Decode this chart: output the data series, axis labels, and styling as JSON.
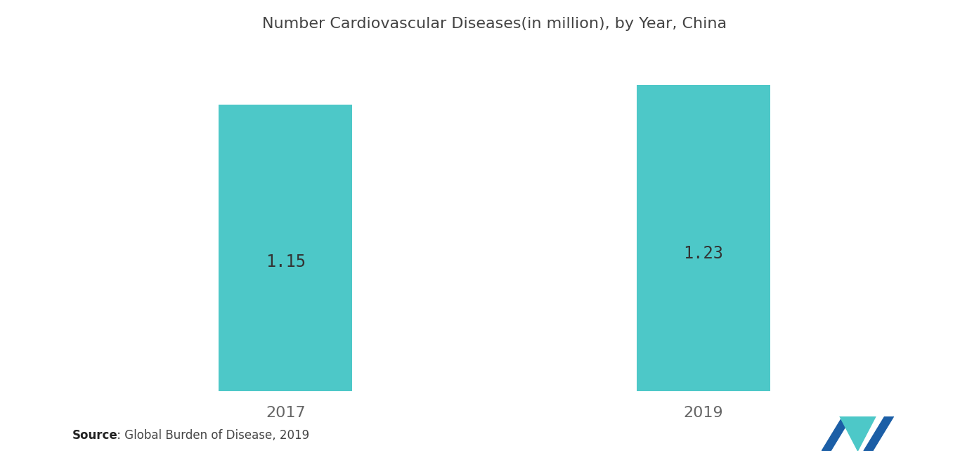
{
  "title": "Number Cardiovascular Diseases(in million), by Year, China",
  "categories": [
    "2017",
    "2019"
  ],
  "values": [
    1.15,
    1.23
  ],
  "bar_color": "#4DC8C8",
  "bar_width": 0.32,
  "bar_positions": [
    1,
    2
  ],
  "label_fontsize": 16,
  "value_fontsize": 17,
  "title_fontsize": 16,
  "title_color": "#444444",
  "value_label_color": "#333333",
  "xlabel_color": "#666666",
  "background_color": "#ffffff",
  "source_bold": "Source",
  "source_normal": " : Global Burden of Disease, 2019",
  "ylim": [
    0,
    1.35
  ],
  "xlim": [
    0.5,
    2.5
  ]
}
